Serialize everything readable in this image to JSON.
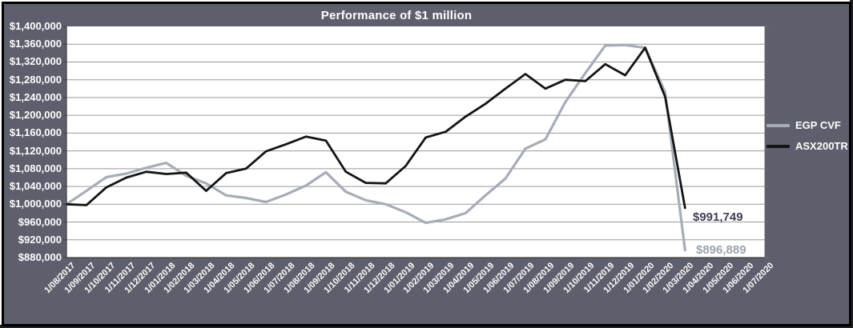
{
  "title": "Performance of $1 million",
  "colors": {
    "background": "#5e5f6c",
    "plot_background": "#ffffff",
    "gridline": "#999999",
    "axis": "#3f3f3f",
    "right_border": "#6e6e6e",
    "title_text": "#ffffff",
    "egp_line": "#a6adb7",
    "asx_line": "#141414",
    "egp_end_label": "#9ca3ad",
    "asx_end_label": "#3f3f55"
  },
  "chart_data": {
    "type": "line",
    "title": "Performance of $1 million",
    "xlabel": "",
    "ylabel": "",
    "grid": true,
    "legend_position": "right",
    "y_axis": {
      "min": 880000,
      "max": 1400000,
      "step": 40000,
      "tick_labels": [
        "$1,400,000",
        "$1,360,000",
        "$1,320,000",
        "$1,280,000",
        "$1,240,000",
        "$1,200,000",
        "$1,160,000",
        "$1,120,000",
        "$1,080,000",
        "$1,040,000",
        "$1,000,000",
        "$960,000",
        "$920,000",
        "$880,000"
      ]
    },
    "x_labels": [
      "1/08/2017",
      "1/09/2017",
      "1/10/2017",
      "1/11/2017",
      "1/12/2017",
      "1/01/2018",
      "1/02/2018",
      "1/03/2018",
      "1/04/2018",
      "1/05/2018",
      "1/06/2018",
      "1/07/2018",
      "1/08/2018",
      "1/09/2018",
      "1/10/2018",
      "1/11/2018",
      "1/12/2018",
      "1/01/2019",
      "1/02/2019",
      "1/03/2019",
      "1/04/2019",
      "1/05/2019",
      "1/06/2019",
      "1/07/2019",
      "1/08/2019",
      "1/09/2019",
      "1/10/2019",
      "1/11/2019",
      "1/12/2019",
      "1/01/2020",
      "1/02/2020",
      "1/03/2020",
      "1/04/2020",
      "1/05/2020",
      "1/06/2020",
      "1/07/2020"
    ],
    "series": [
      {
        "name": "EGP CVF",
        "color": "#a6adb7",
        "end_label": "$896,889",
        "values": [
          1000000,
          1030000,
          1061000,
          1069000,
          1082000,
          1093000,
          1064000,
          1047000,
          1020000,
          1014000,
          1005000,
          1022000,
          1042000,
          1072000,
          1028000,
          1009000,
          1000000,
          982000,
          958000,
          966000,
          980000,
          1020000,
          1058000,
          1125000,
          1146000,
          1230000,
          1295000,
          1357000,
          1358000,
          1352000,
          1252000,
          896889
        ]
      },
      {
        "name": "ASX200TR",
        "color": "#141414",
        "end_label": "$991,749",
        "values": [
          1000000,
          998000,
          1038000,
          1060000,
          1073000,
          1068000,
          1071000,
          1030000,
          1070000,
          1080000,
          1119000,
          1135000,
          1152000,
          1143000,
          1073000,
          1048000,
          1047000,
          1086000,
          1150000,
          1163000,
          1197000,
          1226000,
          1260000,
          1293000,
          1260000,
          1280000,
          1277000,
          1315000,
          1290000,
          1352000,
          1242000,
          991749
        ]
      }
    ]
  }
}
